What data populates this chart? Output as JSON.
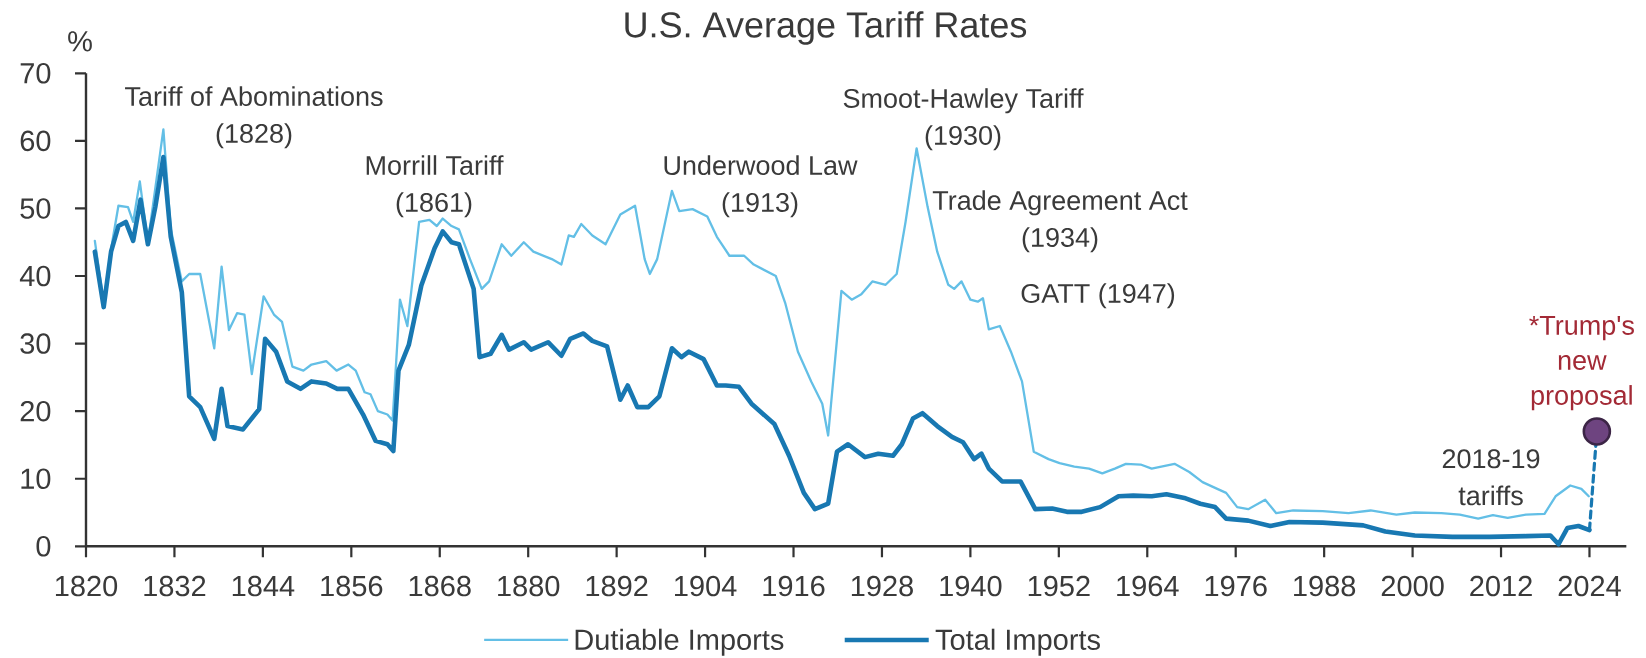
{
  "chart_data": {
    "type": "line",
    "title": "U.S. Average Tariff Rates",
    "ylabel": "%",
    "xlim": [
      1820,
      2029
    ],
    "ylim": [
      0,
      70
    ],
    "xticks": [
      1820,
      1832,
      1844,
      1856,
      1868,
      1880,
      1892,
      1904,
      1916,
      1928,
      1940,
      1952,
      1964,
      1976,
      1988,
      2000,
      2012,
      2024
    ],
    "yticks": [
      0,
      10,
      20,
      30,
      40,
      50,
      60,
      70
    ],
    "grid": false,
    "legend": "bottom",
    "series": [
      {
        "name": "Dutiable Imports",
        "color": "#63bfe6",
        "x": [
          1821.2,
          1822.4,
          1823.4,
          1824.4,
          1825.7,
          1826.4,
          1827.3,
          1828.4,
          1830.5,
          1831.5,
          1833,
          1834,
          1835.5,
          1837.4,
          1838.4,
          1839.4,
          1840.5,
          1841.5,
          1842.5,
          1844.1,
          1845.5,
          1846.6,
          1848,
          1849.5,
          1850.6,
          1852.6,
          1854,
          1855.6,
          1856.6,
          1857.8,
          1858.6,
          1859.6,
          1860.9,
          1861.6,
          1862.6,
          1863.6,
          1865.2,
          1866.6,
          1867.6,
          1868.4,
          1869.6,
          1870.6,
          1872.1,
          1873.7,
          1874.7,
          1876.4,
          1877.7,
          1879.4,
          1880.7,
          1883.2,
          1884.5,
          1885.5,
          1886.2,
          1887.2,
          1888.7,
          1890.5,
          1892.5,
          1894.5,
          1895.8,
          1896.5,
          1897.5,
          1899.5,
          1900.5,
          1902.3,
          1904.3,
          1905.6,
          1907.3,
          1909.3,
          1910.6,
          1913.6,
          1914.9,
          1916.6,
          1918.4,
          1919.9,
          1920.7,
          1922.5,
          1923.9,
          1925.2,
          1926.7,
          1928.5,
          1930,
          1931.2,
          1932.7,
          1934.2,
          1935.5,
          1937,
          1937.8,
          1938.8,
          1940,
          1941,
          1941.7,
          1942.5,
          1944,
          1945.5,
          1947,
          1948.6,
          1950.6,
          1952.1,
          1954.1,
          1956.1,
          1957.9,
          1959.6,
          1961.1,
          1963.1,
          1964.6,
          1967.7,
          1969.7,
          1971.5,
          1973.5,
          1974.7,
          1976.2,
          1977.7,
          1980,
          1981.5,
          1983.8,
          1987.8,
          1991.3,
          1994.3,
          1997.8,
          2000.3,
          2003.9,
          2006.4,
          2008.9,
          2010.9,
          2012.9,
          2015.4,
          2017.9,
          2019.4,
          2021.4,
          2022.9,
          2023.9
        ],
        "values": [
          45.2,
          36,
          44,
          50.4,
          50.2,
          48,
          54,
          45,
          61.7,
          47,
          39.2,
          40.3,
          40.3,
          29.3,
          41.4,
          32,
          34.5,
          34.3,
          25.5,
          37,
          34.3,
          33.2,
          26.6,
          26,
          26.9,
          27.4,
          26,
          26.9,
          26,
          22.8,
          22.5,
          20,
          19.5,
          18.6,
          36.5,
          32.6,
          48,
          48.3,
          47.4,
          48.5,
          47.4,
          46.9,
          42.5,
          38.1,
          39.2,
          44.7,
          43,
          45,
          43.6,
          42.5,
          41.7,
          46,
          45.8,
          47.7,
          46,
          44.7,
          49.1,
          50.4,
          42.5,
          40.3,
          42.5,
          52.6,
          49.6,
          49.9,
          48.8,
          45.8,
          43,
          43,
          41.7,
          40,
          35.9,
          28.8,
          24.4,
          21.1,
          16.4,
          37.8,
          36.5,
          37.3,
          39.2,
          38.7,
          40.3,
          48,
          58.9,
          50.2,
          43.6,
          38.7,
          38.1,
          39.2,
          36.5,
          36.2,
          36.7,
          32.1,
          32.6,
          28.8,
          24.4,
          14,
          12.9,
          12.3,
          11.8,
          11.5,
          10.8,
          11.5,
          12.2,
          12.1,
          11.5,
          12.2,
          11,
          9.5,
          8.5,
          7.9,
          5.8,
          5.5,
          6.9,
          4.9,
          5.3,
          5.2,
          4.9,
          5.3,
          4.7,
          5,
          4.9,
          4.7,
          4.1,
          4.6,
          4.2,
          4.7,
          4.8,
          7.4,
          9,
          8.5,
          7.4
        ]
      },
      {
        "name": "Total Imports",
        "color": "#1878b2",
        "x": [
          1821.2,
          1822.4,
          1823.4,
          1824.4,
          1825.4,
          1826.4,
          1827.4,
          1828.4,
          1829.4,
          1830.5,
          1831.5,
          1833,
          1834,
          1835.5,
          1837.4,
          1838.4,
          1839.2,
          1841.3,
          1843.5,
          1844.3,
          1845.8,
          1847.3,
          1849.1,
          1850.6,
          1852.6,
          1854.1,
          1855.6,
          1857.6,
          1859.3,
          1860.9,
          1861.7,
          1862.4,
          1863.8,
          1865.5,
          1867.3,
          1868.4,
          1869.6,
          1870.6,
          1872.6,
          1873.4,
          1874.9,
          1876.4,
          1877.4,
          1879.4,
          1880.4,
          1882.7,
          1884.5,
          1885.7,
          1887.5,
          1888.7,
          1890.7,
          1892.5,
          1893.5,
          1894.8,
          1896.3,
          1897.8,
          1899.5,
          1900.8,
          1901.8,
          1903.8,
          1905.6,
          1906.8,
          1908.6,
          1910.3,
          1913.4,
          1915.4,
          1917.4,
          1918.9,
          1920.7,
          1921.9,
          1923.4,
          1925.7,
          1927.5,
          1929.5,
          1930.7,
          1932.2,
          1933.5,
          1935.5,
          1937.5,
          1939,
          1940.5,
          1941.5,
          1942.5,
          1944.3,
          1946.8,
          1948.8,
          1951.1,
          1953.1,
          1955.1,
          1957.6,
          1960.1,
          1962.1,
          1964.6,
          1966.6,
          1969.2,
          1971.2,
          1973.2,
          1974.7,
          1977.7,
          1980.7,
          1983.3,
          1987.8,
          1993.3,
          1996.3,
          2000.3,
          2005.4,
          2010.4,
          2015.4,
          2018.7,
          2019.8,
          2021,
          2022.5,
          2024
        ],
        "values": [
          43.6,
          35.4,
          43.6,
          47.4,
          48,
          45.2,
          51.3,
          44.7,
          50.2,
          57.6,
          45.8,
          37.6,
          22.2,
          20.6,
          15.9,
          23.3,
          17.8,
          17.3,
          20.3,
          30.7,
          28.8,
          24.4,
          23.3,
          24.4,
          24.1,
          23.3,
          23.3,
          19.5,
          15.6,
          15.1,
          14.1,
          26,
          29.8,
          38.6,
          44.1,
          46.6,
          45,
          44.7,
          38.1,
          28,
          28.5,
          31.3,
          29.1,
          30.2,
          29.1,
          30.2,
          28.2,
          30.7,
          31.5,
          30.4,
          29.6,
          21.7,
          23.8,
          20.6,
          20.6,
          22.2,
          29.3,
          28,
          28.8,
          27.7,
          23.8,
          23.8,
          23.6,
          21.1,
          18.1,
          13.4,
          7.9,
          5.5,
          6.3,
          14,
          15.1,
          13.2,
          13.7,
          13.4,
          15.1,
          18.9,
          19.7,
          17.8,
          16.2,
          15.4,
          12.9,
          13.7,
          11.5,
          9.6,
          9.6,
          5.5,
          5.6,
          5.1,
          5.1,
          5.8,
          7.4,
          7.5,
          7.4,
          7.7,
          7.1,
          6.3,
          5.8,
          4.1,
          3.8,
          3,
          3.6,
          3.5,
          3.1,
          2.2,
          1.6,
          1.4,
          1.4,
          1.5,
          1.6,
          0.3,
          2.7,
          3,
          2.4
        ]
      },
      {
        "type": "line",
        "color": "#1878b2",
        "line_style": "dashed",
        "x": [
          2024,
          2025
        ],
        "values": [
          2.4,
          17
        ]
      },
      {
        "type": "scatter",
        "color": "#6e4480",
        "marker": "circle",
        "x": [
          2025
        ],
        "values": [
          17
        ]
      }
    ],
    "annotations": [
      "Tariff of Abominations (1828)",
      "Morrill Tariff (1861)",
      "Underwood Law (1913)",
      "Smoot-Hawley Tariff (1930)",
      "Trade Agreement Act (1934)",
      "GATT (1947)",
      "2018-19 tariffs",
      {
        "text": "*Trump's new proposal",
        "x": 2025,
        "y": 17
      }
    ]
  }
}
